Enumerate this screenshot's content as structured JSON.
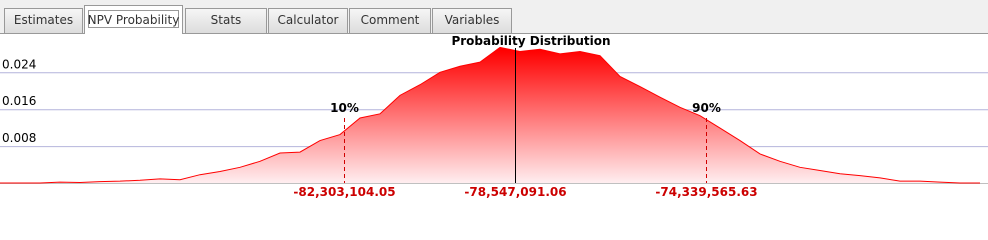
{
  "tabs": [
    "Estimates",
    "NPV Probability",
    "Stats",
    "Calculator",
    "Comment",
    "Variables"
  ],
  "active_tab": 1,
  "chart_data": {
    "type": "area",
    "title": "Probability Distribution",
    "x": [
      -89870000,
      -89430000,
      -88990000,
      -88550000,
      -88110000,
      -87670000,
      -87230000,
      -86790000,
      -86350000,
      -85910000,
      -85470000,
      -85030000,
      -84590000,
      -84150000,
      -83710000,
      -83270000,
      -82830000,
      -82390000,
      -81950000,
      -81510000,
      -81070000,
      -80630000,
      -80190000,
      -79750000,
      -79310000,
      -78870000,
      -78430000,
      -77990000,
      -77550000,
      -77110000,
      -76670000,
      -76230000,
      -75790000,
      -75350000,
      -74910000,
      -74470000,
      -74030000,
      -73590000,
      -73150000,
      -72710000,
      -72270000,
      -71830000,
      -71390000,
      -70950000,
      -70510000,
      -70070000,
      -69630000,
      -69190000,
      -68750000,
      -68310000
    ],
    "values": [
      0,
      0,
      0,
      0.0002,
      0.0001,
      0.0003,
      0.0004,
      0.0006,
      0.0009,
      0.0007,
      0.0018,
      0.0025,
      0.0034,
      0.0047,
      0.0065,
      0.0067,
      0.0092,
      0.0105,
      0.0141,
      0.015,
      0.019,
      0.0213,
      0.024,
      0.0253,
      0.0262,
      0.0294,
      0.0285,
      0.029,
      0.028,
      0.0285,
      0.0276,
      0.0231,
      0.0209,
      0.0186,
      0.0164,
      0.0146,
      0.0119,
      0.0092,
      0.0063,
      0.0047,
      0.0034,
      0.0027,
      0.002,
      0.0016,
      0.0011,
      0.0004,
      0.0004,
      0.0002,
      0,
      0
    ],
    "color": "#ff0000",
    "xlim": [
      -89870000,
      -68134000
    ],
    "ylim": [
      0,
      0.031
    ],
    "yticks": [
      0.008,
      0.016,
      0.024
    ],
    "grid": true,
    "markers": [
      {
        "label": "10%",
        "value": -82303104.05,
        "value_label": "-82,303,104.05",
        "style": "dashed"
      },
      {
        "value": -78547091.06,
        "value_label": "-78,547,091.06",
        "style": "solid"
      },
      {
        "label": "90%",
        "value": -74339565.63,
        "value_label": "-74,339,565.63",
        "style": "dashed"
      }
    ]
  }
}
